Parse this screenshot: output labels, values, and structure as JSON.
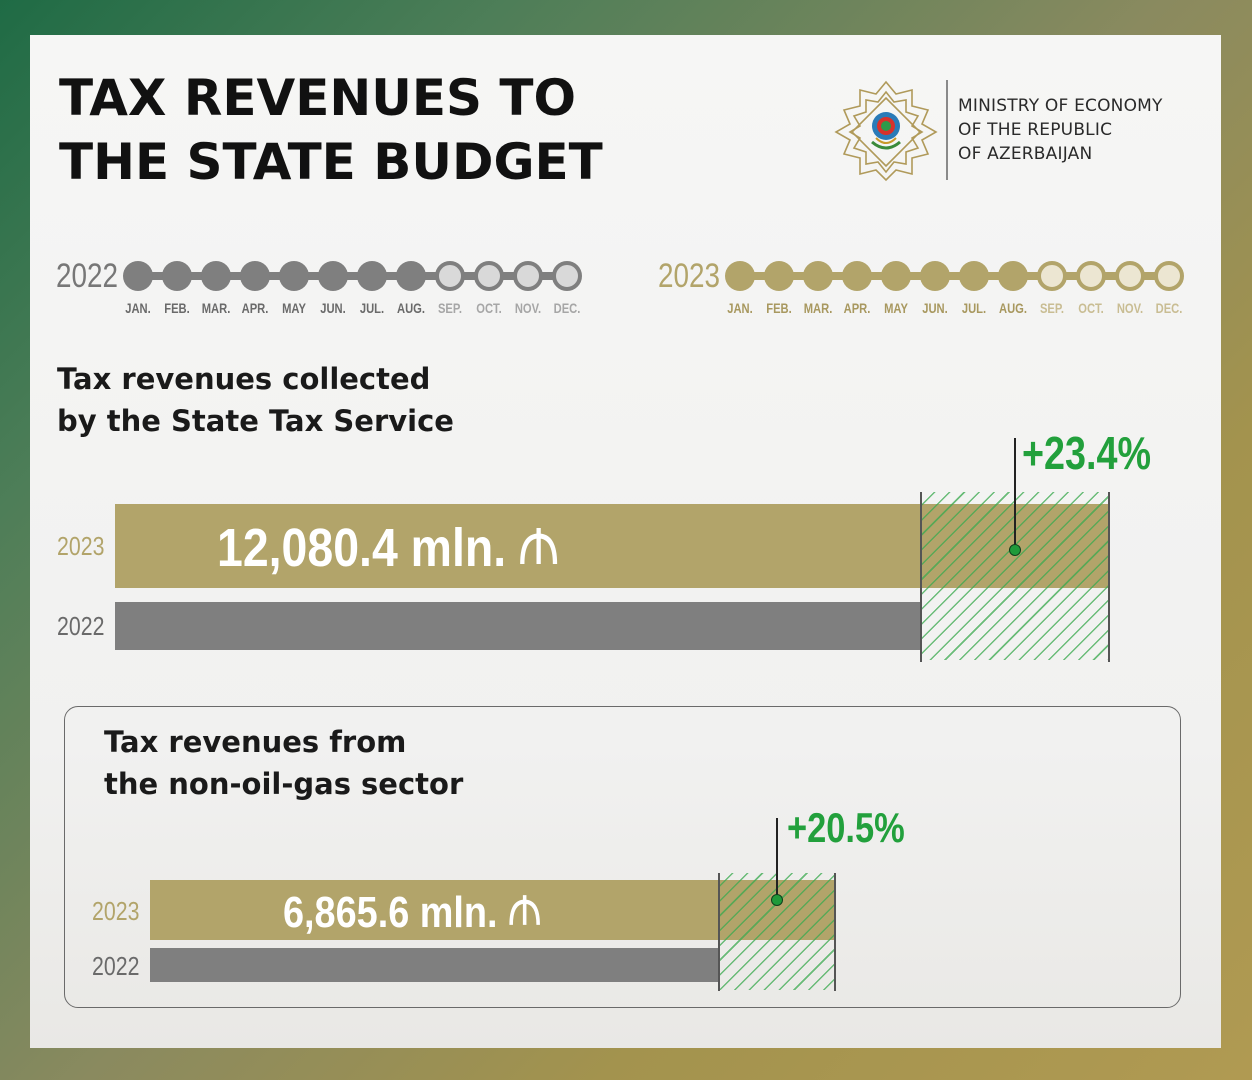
{
  "title": {
    "line1": "TAX REVENUES TO",
    "line2": "THE STATE BUDGET"
  },
  "ministry": {
    "line1": "MINISTRY OF ECONOMY",
    "line2": "OF THE REPUBLIC",
    "line3": "OF AZERBAIJAN"
  },
  "colors": {
    "gold": "#b2a46a",
    "grey": "#7f7f7f",
    "green": "#22a03c",
    "background_green": "#1f6b45"
  },
  "timelines": [
    {
      "year": "2022",
      "color": "#7f7f7f",
      "months": [
        "JAN.",
        "FEB.",
        "MAR.",
        "APR.",
        "MAY",
        "JUN.",
        "JUL.",
        "AUG.",
        "SEP.",
        "OCT.",
        "NOV.",
        "DEC."
      ],
      "filled_months": 8
    },
    {
      "year": "2023",
      "color": "#b2a46a",
      "months": [
        "JAN.",
        "FEB.",
        "MAR.",
        "APR.",
        "MAY",
        "JUN.",
        "JUL.",
        "AUG.",
        "SEP.",
        "OCT.",
        "NOV.",
        "DEC."
      ],
      "filled_months": 8
    }
  ],
  "chart_data": [
    {
      "type": "bar",
      "title": "Tax revenues collected by the State Tax Service",
      "title_lines": [
        "Tax revenues collected",
        "by the State Tax Service"
      ],
      "categories": [
        "2023",
        "2022"
      ],
      "value_label": "12,080.4 mln.",
      "currency_symbol": "₼",
      "values": [
        12080.4,
        9789.6
      ],
      "growth_label": "+23.4%",
      "growth_percent": 23.4
    },
    {
      "type": "bar",
      "title": "Tax revenues from the non-oil-gas sector",
      "title_lines": [
        "Tax revenues from",
        "the non-oil-gas sector"
      ],
      "categories": [
        "2023",
        "2022"
      ],
      "value_label": "6,865.6 mln.",
      "currency_symbol": "₼",
      "values": [
        6865.6,
        5697.6
      ],
      "growth_label": "+20.5%",
      "growth_percent": 20.5
    }
  ]
}
